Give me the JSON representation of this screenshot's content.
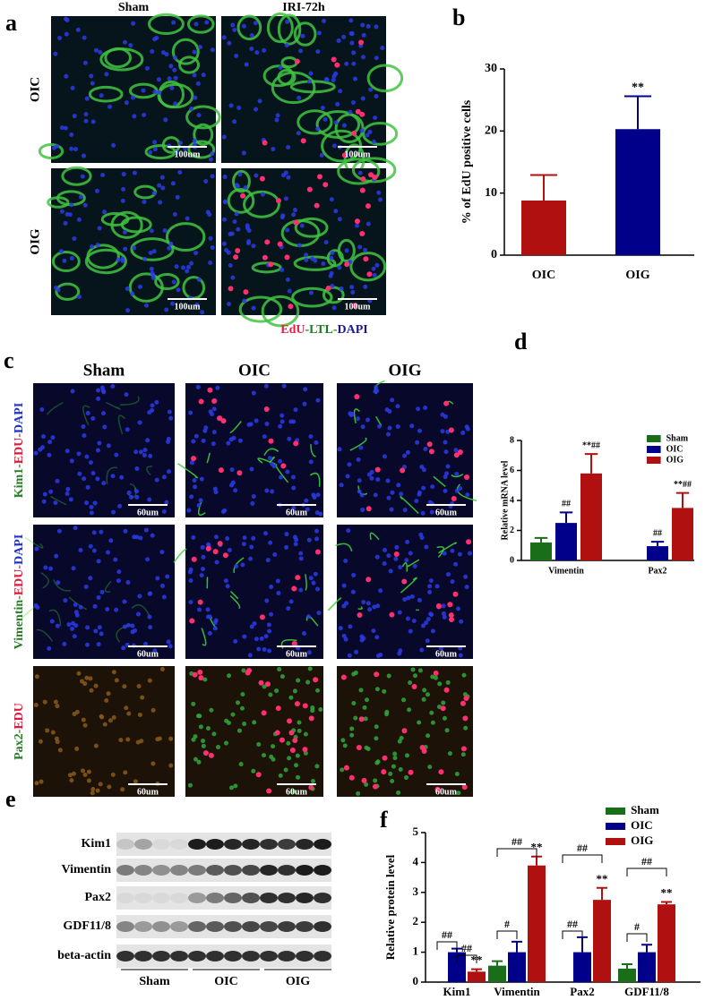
{
  "chart_data": [
    {
      "type": "bar",
      "panel_label": "b",
      "y_label": "% of EdU positive cells",
      "categories": [
        "OIC",
        "OIG"
      ],
      "values": [
        8.8,
        20.3
      ],
      "errors": [
        4.1,
        5.3
      ],
      "colors": [
        "#b01010",
        "#00008b"
      ],
      "annotation": "**",
      "ylim": [
        0,
        30
      ],
      "yticks": [
        0,
        10,
        20,
        30
      ]
    },
    {
      "type": "bar",
      "panel_label": "d",
      "y_label": "Relative mRNA level",
      "categories": [
        "Vimentin",
        "Pax2"
      ],
      "series": [
        {
          "name": "Sham",
          "color": "#1a6e1a",
          "values": [
            1.2,
            null
          ],
          "errors": [
            0.3,
            null
          ]
        },
        {
          "name": "OIC",
          "color": "#00008b",
          "values": [
            2.5,
            0.95
          ],
          "errors": [
            0.7,
            0.3
          ],
          "annotations": [
            "##",
            "##"
          ]
        },
        {
          "name": "OIG",
          "color": "#b01010",
          "values": [
            5.8,
            3.5
          ],
          "errors": [
            1.3,
            1.0
          ],
          "annotations": [
            "**##",
            "**##"
          ]
        }
      ],
      "ylim": [
        0,
        8
      ],
      "yticks": [
        0,
        2,
        4,
        6,
        8
      ]
    },
    {
      "type": "bar",
      "panel_label": "f",
      "y_label": "Relative protein level",
      "categories": [
        "Kim1",
        "Vimentin",
        "Pax2",
        "GDF11/8"
      ],
      "series": [
        {
          "name": "Sham",
          "color": "#1a6e1a",
          "values": [
            null,
            0.55,
            null,
            0.45
          ],
          "errors": [
            null,
            0.15,
            null,
            0.15
          ]
        },
        {
          "name": "OIC",
          "color": "#00008b",
          "values": [
            1.0,
            1.0,
            1.0,
            1.0
          ],
          "errors": [
            0.12,
            0.35,
            0.5,
            0.25
          ]
        },
        {
          "name": "OIG",
          "color": "#b01010",
          "values": [
            0.35,
            3.9,
            2.75,
            2.6
          ],
          "errors": [
            0.08,
            0.3,
            0.4,
            0.08
          ],
          "annotations": [
            "**",
            "**",
            "**",
            "**"
          ]
        }
      ],
      "bracket_labels": [
        [
          "##",
          "##"
        ],
        [
          "#",
          "##"
        ],
        [
          "##",
          "##"
        ],
        [
          "#",
          "##"
        ]
      ],
      "ylim": [
        0,
        5
      ],
      "yticks": [
        0,
        1,
        2,
        3,
        4,
        5
      ]
    }
  ],
  "figure": {
    "a": {
      "label": "a",
      "columns": [
        "Sham",
        "IRI-72h"
      ],
      "rows": [
        "OIC",
        "OIG"
      ],
      "scale_bars": [
        "100um",
        "100um",
        "100um",
        "100um"
      ],
      "stain": [
        {
          "text": "EdU",
          "color": "#e0204a"
        },
        {
          "text": "-LTL-",
          "color": "#1e7a1e"
        },
        {
          "text": "DAPI",
          "color": "#1a1a8a"
        }
      ]
    },
    "c": {
      "label": "c",
      "columns": [
        "Sham",
        "OIC",
        "OIG"
      ],
      "rows": [
        [
          {
            "text": "Kim1-",
            "color": "#2a7a2a"
          },
          {
            "text": "EDU-",
            "color": "#d81b3a"
          },
          {
            "text": "DAPI",
            "color": "#2030c8"
          }
        ],
        [
          {
            "text": "Vimentin-",
            "color": "#2a7a2a"
          },
          {
            "text": "EDU-",
            "color": "#d81b3a"
          },
          {
            "text": "DAPI",
            "color": "#2030c8"
          }
        ],
        [
          {
            "text": "Pax2-",
            "color": "#2a7a2a"
          },
          {
            "text": "EDU",
            "color": "#d81b3a"
          }
        ]
      ],
      "scale_bars": [
        "60um",
        "60um",
        "60um",
        "60um",
        "60um",
        "60um",
        "60um",
        "60um",
        "60um"
      ]
    },
    "e": {
      "label": "e",
      "rows": [
        "Kim1",
        "Vimentin",
        "Pax2",
        "GDF11/8",
        "beta-actin"
      ],
      "groups": [
        "Sham",
        "OIC",
        "OIG"
      ]
    }
  }
}
